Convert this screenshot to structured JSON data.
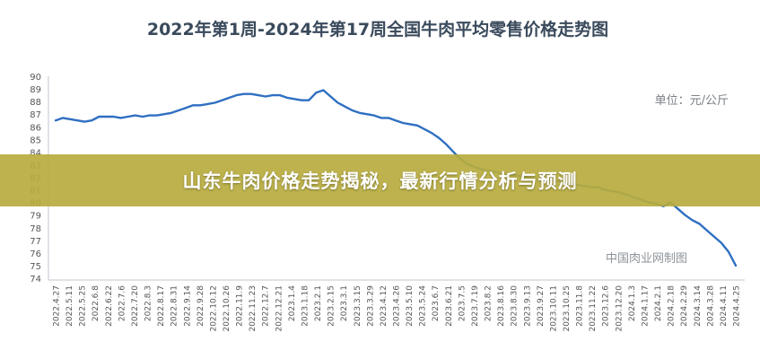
{
  "overlay_title": "山东牛肉价格走势揭秘，最新行情分析与预测",
  "chart_data": {
    "type": "line",
    "title": "2022年第1周-2024年第17周全国牛肉平均零售价格走势图",
    "unit_label": "单位：元/公斤",
    "watermark": "中国肉业网制图",
    "xlabel": "",
    "ylabel": "",
    "ylim": [
      74,
      90
    ],
    "yticks": [
      74,
      75,
      76,
      77,
      78,
      79,
      80,
      81,
      82,
      83,
      84,
      85,
      86,
      87,
      88,
      89,
      90
    ],
    "grid": false,
    "line_color": "#2f6fc1",
    "x_tick_labels": [
      "2022.4.27",
      "2022.5.11",
      "2022.5.25",
      "2022.6.8",
      "2022.6.22",
      "2022.7.6",
      "2022.7.20",
      "2022.8.3",
      "2022.8.17",
      "2022.8.31",
      "2022.9.14",
      "2022.9.28",
      "2022.10.12",
      "2022.10.26",
      "2022.11.9",
      "2022.11.23",
      "2022.12.7",
      "2022.12.21",
      "2023.1.4",
      "2023.1.18",
      "2023.2.1",
      "2023.2.15",
      "2023.3.1",
      "2023.3.15",
      "2023.3.29",
      "2023.4.12",
      "2023.4.26",
      "2023.5.10",
      "2023.5.24",
      "2023.6.7",
      "2023.6.21",
      "2023.7.5",
      "2023.7.19",
      "2023.8.2",
      "2023.8.16",
      "2023.8.30",
      "2023.9.13",
      "2023.9.27",
      "2023.10.11",
      "2023.10.25",
      "2023.11.8",
      "2023.11.22",
      "2023.12.6",
      "2023.12.20",
      "2024.1.3",
      "2024.1.17",
      "2024.2.1",
      "2024.2.18",
      "2024.2.29",
      "2024.3.14",
      "2024.3.28",
      "2024.4.11",
      "2024.4.25"
    ],
    "series": [
      {
        "values": [
          86.5,
          86.7,
          86.6,
          86.5,
          86.4,
          86.5,
          86.8,
          86.8,
          86.8,
          86.7,
          86.8,
          86.9,
          86.8,
          86.9,
          86.9,
          87.0,
          87.1,
          87.3,
          87.5,
          87.7,
          87.7,
          87.8,
          87.9,
          88.1,
          88.3,
          88.5,
          88.6,
          88.6,
          88.5,
          88.4,
          88.5,
          88.5,
          88.3,
          88.2,
          88.1,
          88.1,
          88.7,
          88.9,
          88.4,
          87.9,
          87.6,
          87.3,
          87.1,
          87.0,
          86.9,
          86.7,
          86.7,
          86.5,
          86.3,
          86.2,
          86.1,
          85.8,
          85.5,
          85.1,
          84.6,
          84.0,
          83.4,
          83.0,
          82.8,
          82.6,
          82.5,
          82.4,
          82.3,
          82.2,
          82.1,
          82.0,
          81.9,
          81.8,
          81.7,
          81.7,
          81.6,
          81.5,
          81.4,
          81.3,
          81.2,
          81.2,
          81.0,
          80.9,
          80.8,
          80.6,
          80.4,
          80.2,
          80.0,
          79.9,
          79.7,
          80.0,
          79.5,
          79.0,
          78.6,
          78.3,
          77.8,
          77.3,
          76.8,
          76.1,
          75.0
        ]
      }
    ]
  }
}
